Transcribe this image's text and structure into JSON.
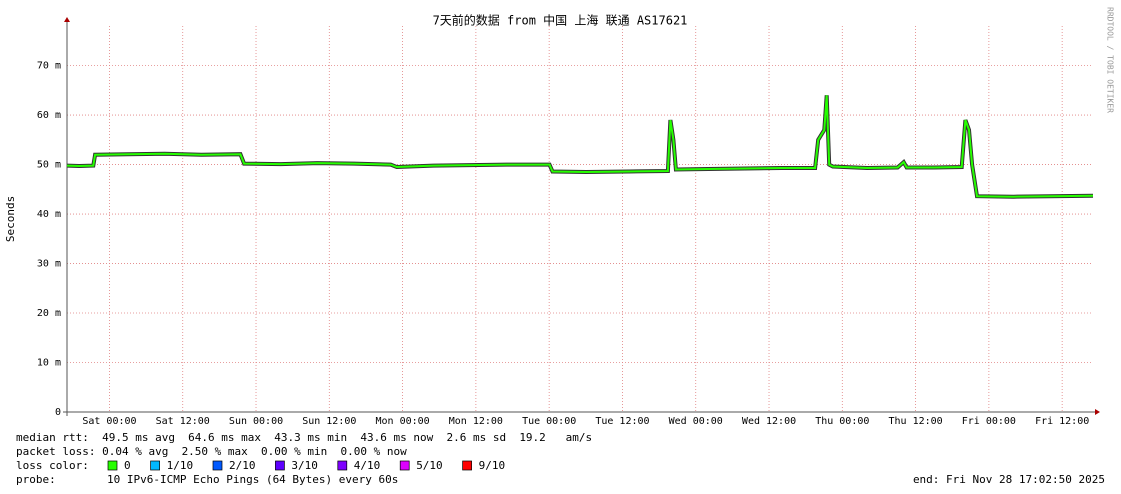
{
  "chart_data": {
    "type": "line",
    "title": "7天前的数据 from 中国 上海 联通 AS17621",
    "y_label": "Seconds",
    "watermark": "RRDTOOL / TOBI OETIKER",
    "xlim": [
      0,
      168
    ],
    "xticks": [
      {
        "value": 6.95,
        "label": "Sat 00:00"
      },
      {
        "value": 18.95,
        "label": "Sat 12:00"
      },
      {
        "value": 30.95,
        "label": "Sun 00:00"
      },
      {
        "value": 42.95,
        "label": "Sun 12:00"
      },
      {
        "value": 54.95,
        "label": "Mon 00:00"
      },
      {
        "value": 66.95,
        "label": "Mon 12:00"
      },
      {
        "value": 78.95,
        "label": "Tue 00:00"
      },
      {
        "value": 90.95,
        "label": "Tue 12:00"
      },
      {
        "value": 102.95,
        "label": "Wed 00:00"
      },
      {
        "value": 114.95,
        "label": "Wed 12:00"
      },
      {
        "value": 126.95,
        "label": "Thu 00:00"
      },
      {
        "value": 138.95,
        "label": "Thu 12:00"
      },
      {
        "value": 150.95,
        "label": "Fri 00:00"
      },
      {
        "value": 162.95,
        "label": "Fri 12:00"
      }
    ],
    "ylim": [
      0,
      0.078
    ],
    "yticks": [
      0,
      {
        "value": 0.01,
        "label": "10 m"
      },
      {
        "value": 0.02,
        "label": "20 m"
      },
      {
        "value": 0.03,
        "label": "30 m"
      },
      {
        "value": 0.04,
        "label": "40 m"
      },
      {
        "value": 0.05,
        "label": "50 m"
      },
      {
        "value": 0.06,
        "label": "60 m"
      },
      {
        "value": 0.07,
        "label": "70 m"
      }
    ],
    "grid": true,
    "x": [
      0,
      2,
      4.3,
      4.6,
      10,
      16,
      22,
      28.4,
      29,
      35,
      41,
      47,
      53,
      54,
      60,
      66,
      72,
      79,
      79.5,
      85,
      92,
      98.4,
      98.8,
      99.3,
      99.7,
      105,
      111,
      117,
      122.5,
      123,
      124,
      124.4,
      124.8,
      125.4,
      131,
      136,
      137,
      137.5,
      142,
      146.5,
      147.1,
      147.7,
      148.2,
      149,
      155,
      161,
      168
    ],
    "series": [
      {
        "name": "median rtt",
        "color": "#26ff00",
        "values": [
          0.0498,
          0.0497,
          0.0498,
          0.052,
          0.0521,
          0.0522,
          0.052,
          0.0521,
          0.0502,
          0.0501,
          0.0503,
          0.0502,
          0.05,
          0.0495,
          0.0498,
          0.0499,
          0.05,
          0.05,
          0.0486,
          0.0485,
          0.0486,
          0.0487,
          0.059,
          0.055,
          0.049,
          0.0491,
          0.0492,
          0.0493,
          0.0493,
          0.055,
          0.057,
          0.064,
          0.05,
          0.0496,
          0.0493,
          0.0494,
          0.0505,
          0.0494,
          0.0494,
          0.0495,
          0.059,
          0.057,
          0.05,
          0.0436,
          0.0435,
          0.0436,
          0.0437
        ]
      }
    ],
    "stats": [
      "median rtt:  49.5 ms avg  64.6 ms max  43.3 ms min  43.6 ms now  2.6 ms sd  19.2   am/s",
      "packet loss: 0.04 % avg  2.50 % max  0.00 % min  0.00 % now"
    ],
    "loss_color_label": "loss color:",
    "loss_colors": [
      {
        "label": "0",
        "color": "#26ff00"
      },
      {
        "label": "1/10",
        "color": "#00b8ff"
      },
      {
        "label": "2/10",
        "color": "#0059ff"
      },
      {
        "label": "3/10",
        "color": "#5e00ff"
      },
      {
        "label": "4/10",
        "color": "#7e00ff"
      },
      {
        "label": "5/10",
        "color": "#dd00ff"
      },
      {
        "label": "9/10",
        "color": "#ff0000"
      }
    ],
    "probe_label": "probe:",
    "probe": "10 IPv6-ICMP Echo Pings (64 Bytes) every 60s",
    "end": "end: Fri Nov 28 17:02:50 2025"
  }
}
